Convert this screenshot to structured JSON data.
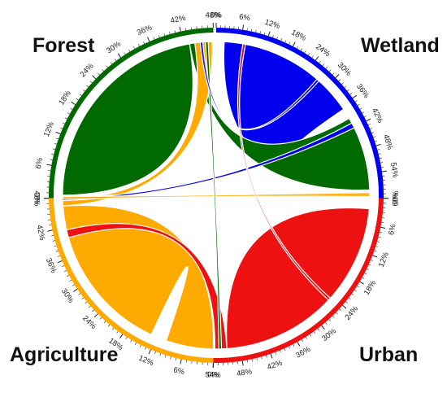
{
  "diagram": {
    "type": "chord",
    "tick_step_percent": 6,
    "groups": [
      {
        "name": "Wetland",
        "color": "#0000ee",
        "max_percent": 60,
        "tick_labels": [
          "0%",
          "6%",
          "12%",
          "18%",
          "24%",
          "30%",
          "36%",
          "42%",
          "48%",
          "54%",
          "60%"
        ]
      },
      {
        "name": "Urban",
        "color": "#ee1111",
        "max_percent": 54,
        "tick_labels": [
          "0%",
          "6%",
          "12%",
          "18%",
          "24%",
          "30%",
          "36%",
          "42%",
          "48%",
          "54%"
        ]
      },
      {
        "name": "Agriculture",
        "color": "#ffaa00",
        "max_percent": 48,
        "tick_labels": [
          "0%",
          "6%",
          "12%",
          "18%",
          "24%",
          "30%",
          "36%",
          "42%",
          "48%"
        ]
      },
      {
        "name": "Forest",
        "color": "#006a00",
        "max_percent": 48,
        "tick_labels": [
          "0%",
          "6%",
          "12%",
          "18%",
          "24%",
          "30%",
          "36%",
          "42%",
          "48%"
        ]
      }
    ]
  }
}
